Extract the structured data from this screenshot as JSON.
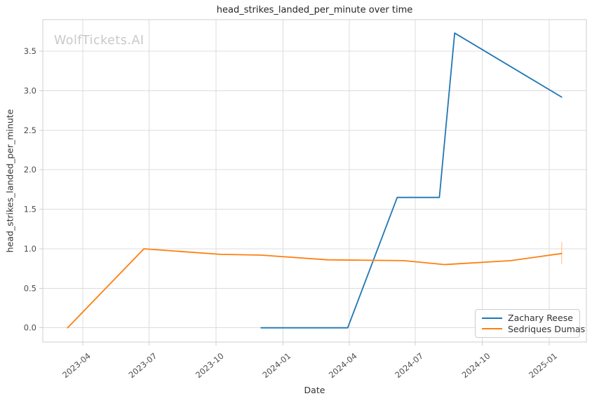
{
  "watermark": "WolfTickets.AI",
  "chart_data": {
    "type": "line",
    "title": "head_strikes_landed_per_minute over time",
    "xlabel": "Date",
    "ylabel": "head_strikes_landed_per_minute",
    "grid": true,
    "legend_position": "lower right",
    "x_ticks": [
      {
        "date": "2023-04-01",
        "label": "2023-04"
      },
      {
        "date": "2023-07-01",
        "label": "2023-07"
      },
      {
        "date": "2023-10-01",
        "label": "2023-10"
      },
      {
        "date": "2024-01-01",
        "label": "2024-01"
      },
      {
        "date": "2024-04-01",
        "label": "2024-04"
      },
      {
        "date": "2024-07-01",
        "label": "2024-07"
      },
      {
        "date": "2024-10-01",
        "label": "2024-10"
      },
      {
        "date": "2025-01-01",
        "label": "2025-01"
      }
    ],
    "y_ticks": [
      {
        "value": 0.0,
        "label": "0.0"
      },
      {
        "value": 0.5,
        "label": "0.5"
      },
      {
        "value": 1.0,
        "label": "1.0"
      },
      {
        "value": 1.5,
        "label": "1.5"
      },
      {
        "value": 2.0,
        "label": "2.0"
      },
      {
        "value": 2.5,
        "label": "2.5"
      },
      {
        "value": 3.0,
        "label": "3.0"
      },
      {
        "value": 3.5,
        "label": "3.5"
      }
    ],
    "x_domain": [
      "2023-02-05",
      "2025-02-21"
    ],
    "ylim": [
      -0.18,
      3.9
    ],
    "series": [
      {
        "name": "Zachary Reese",
        "color": "#1f77b4",
        "points": [
          {
            "date": "2023-12-02",
            "value": 0.0
          },
          {
            "date": "2024-03-30",
            "value": 0.0
          },
          {
            "date": "2024-06-06",
            "value": 1.65
          },
          {
            "date": "2024-08-03",
            "value": 1.65
          },
          {
            "date": "2024-08-24",
            "value": 3.73
          },
          {
            "date": "2025-01-18",
            "value": 2.92
          }
        ]
      },
      {
        "name": "Sedriques Dumas",
        "color": "#ff7f0e",
        "points": [
          {
            "date": "2023-03-11",
            "value": 0.0
          },
          {
            "date": "2023-06-24",
            "value": 1.0
          },
          {
            "date": "2023-10-07",
            "value": 0.93
          },
          {
            "date": "2023-12-02",
            "value": 0.92
          },
          {
            "date": "2024-03-02",
            "value": 0.86
          },
          {
            "date": "2024-06-15",
            "value": 0.85
          },
          {
            "date": "2024-08-10",
            "value": 0.8
          },
          {
            "date": "2024-11-09",
            "value": 0.85
          },
          {
            "date": "2025-01-18",
            "value": 0.94
          }
        ],
        "error_bar": {
          "date": "2025-01-18",
          "low": 0.81,
          "high": 1.09
        }
      }
    ],
    "colors": {
      "series_blue": "#1f77b4",
      "series_orange": "#ff7f0e",
      "gridline": "#dcdcdc",
      "spine": "#cfcfcf",
      "tick_label": "#4d4d4d",
      "watermark": "#c9c9c9"
    }
  }
}
